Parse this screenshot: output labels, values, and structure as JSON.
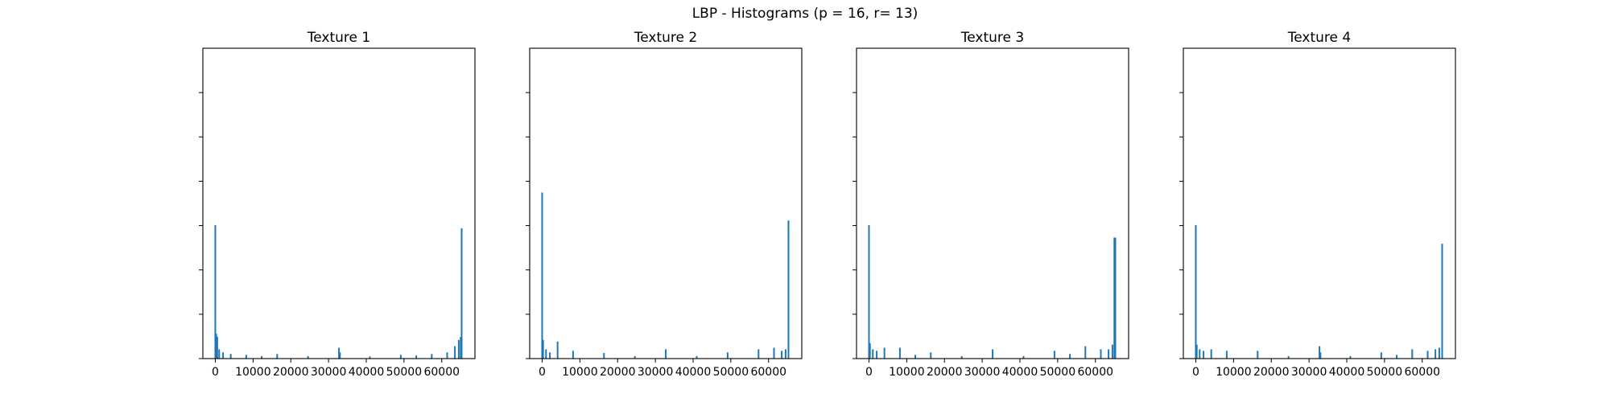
{
  "figure": {
    "title": "LBP - Histograms (p = 16, r= 13)"
  },
  "chart_data": [
    {
      "type": "bar",
      "title": "Texture 1",
      "xlim": [
        -3300,
        68800
      ],
      "ylim": [
        0,
        1.0
      ],
      "xticks": [
        0,
        10000,
        20000,
        30000,
        40000,
        50000,
        60000
      ],
      "xtick_labels": [
        "0",
        "10000",
        "20000",
        "30000",
        "40000",
        "50000",
        "60000"
      ],
      "ytick_count": 7,
      "ytick_labels_visible": false,
      "color": "#1f77b4",
      "bins": [
        {
          "x": 0,
          "v": 0.43
        },
        {
          "x": 256,
          "v": 0.08
        },
        {
          "x": 512,
          "v": 0.07
        },
        {
          "x": 1024,
          "v": 0.03
        },
        {
          "x": 2048,
          "v": 0.02
        },
        {
          "x": 4096,
          "v": 0.015
        },
        {
          "x": 8192,
          "v": 0.012
        },
        {
          "x": 12288,
          "v": 0.008
        },
        {
          "x": 16384,
          "v": 0.015
        },
        {
          "x": 24576,
          "v": 0.008
        },
        {
          "x": 32768,
          "v": 0.035
        },
        {
          "x": 33024,
          "v": 0.02
        },
        {
          "x": 40960,
          "v": 0.007
        },
        {
          "x": 49152,
          "v": 0.012
        },
        {
          "x": 53248,
          "v": 0.01
        },
        {
          "x": 57344,
          "v": 0.015
        },
        {
          "x": 61440,
          "v": 0.02
        },
        {
          "x": 63488,
          "v": 0.04
        },
        {
          "x": 64512,
          "v": 0.06
        },
        {
          "x": 65024,
          "v": 0.07
        },
        {
          "x": 65280,
          "v": 0.42
        }
      ]
    },
    {
      "type": "bar",
      "title": "Texture 2",
      "xlim": [
        -3300,
        68800
      ],
      "ylim": [
        0,
        1.0
      ],
      "xticks": [
        0,
        10000,
        20000,
        30000,
        40000,
        50000,
        60000
      ],
      "xtick_labels": [
        "0",
        "10000",
        "20000",
        "30000",
        "40000",
        "50000",
        "60000"
      ],
      "ytick_count": 7,
      "ytick_labels_visible": false,
      "color": "#1f77b4",
      "bins": [
        {
          "x": 0,
          "v": 0.535
        },
        {
          "x": 256,
          "v": 0.06
        },
        {
          "x": 1024,
          "v": 0.03
        },
        {
          "x": 2048,
          "v": 0.02
        },
        {
          "x": 4096,
          "v": 0.055
        },
        {
          "x": 8192,
          "v": 0.025
        },
        {
          "x": 16384,
          "v": 0.018
        },
        {
          "x": 24576,
          "v": 0.008
        },
        {
          "x": 32768,
          "v": 0.03
        },
        {
          "x": 40960,
          "v": 0.008
        },
        {
          "x": 49152,
          "v": 0.02
        },
        {
          "x": 57344,
          "v": 0.03
        },
        {
          "x": 61440,
          "v": 0.035
        },
        {
          "x": 63488,
          "v": 0.025
        },
        {
          "x": 64512,
          "v": 0.03
        },
        {
          "x": 65280,
          "v": 0.445
        }
      ]
    },
    {
      "type": "bar",
      "title": "Texture 3",
      "xlim": [
        -3300,
        68800
      ],
      "ylim": [
        0,
        1.0
      ],
      "xticks": [
        0,
        10000,
        20000,
        30000,
        40000,
        50000,
        60000
      ],
      "xtick_labels": [
        "0",
        "10000",
        "20000",
        "30000",
        "40000",
        "50000",
        "60000"
      ],
      "ytick_count": 7,
      "ytick_labels_visible": false,
      "color": "#1f77b4",
      "bins": [
        {
          "x": 0,
          "v": 0.43
        },
        {
          "x": 256,
          "v": 0.05
        },
        {
          "x": 1024,
          "v": 0.03
        },
        {
          "x": 2048,
          "v": 0.025
        },
        {
          "x": 4096,
          "v": 0.035
        },
        {
          "x": 8192,
          "v": 0.035
        },
        {
          "x": 12288,
          "v": 0.012
        },
        {
          "x": 16384,
          "v": 0.02
        },
        {
          "x": 24576,
          "v": 0.008
        },
        {
          "x": 32768,
          "v": 0.03
        },
        {
          "x": 40960,
          "v": 0.008
        },
        {
          "x": 49152,
          "v": 0.025
        },
        {
          "x": 53248,
          "v": 0.015
        },
        {
          "x": 57344,
          "v": 0.04
        },
        {
          "x": 61440,
          "v": 0.03
        },
        {
          "x": 63488,
          "v": 0.03
        },
        {
          "x": 64512,
          "v": 0.045
        },
        {
          "x": 65024,
          "v": 0.39
        },
        {
          "x": 65280,
          "v": 0.39
        }
      ]
    },
    {
      "type": "bar",
      "title": "Texture 4",
      "xlim": [
        -3300,
        68800
      ],
      "ylim": [
        0,
        1.0
      ],
      "xticks": [
        0,
        10000,
        20000,
        30000,
        40000,
        50000,
        60000
      ],
      "xtick_labels": [
        "0",
        "10000",
        "20000",
        "30000",
        "40000",
        "50000",
        "60000"
      ],
      "ytick_count": 7,
      "ytick_labels_visible": false,
      "color": "#1f77b4",
      "bins": [
        {
          "x": 0,
          "v": 0.43
        },
        {
          "x": 256,
          "v": 0.045
        },
        {
          "x": 1024,
          "v": 0.03
        },
        {
          "x": 2048,
          "v": 0.025
        },
        {
          "x": 4096,
          "v": 0.03
        },
        {
          "x": 8192,
          "v": 0.025
        },
        {
          "x": 16384,
          "v": 0.025
        },
        {
          "x": 24576,
          "v": 0.008
        },
        {
          "x": 32768,
          "v": 0.04
        },
        {
          "x": 33024,
          "v": 0.02
        },
        {
          "x": 40960,
          "v": 0.008
        },
        {
          "x": 49152,
          "v": 0.02
        },
        {
          "x": 53248,
          "v": 0.012
        },
        {
          "x": 57344,
          "v": 0.03
        },
        {
          "x": 61440,
          "v": 0.025
        },
        {
          "x": 63488,
          "v": 0.03
        },
        {
          "x": 64512,
          "v": 0.035
        },
        {
          "x": 65280,
          "v": 0.37
        }
      ]
    }
  ]
}
